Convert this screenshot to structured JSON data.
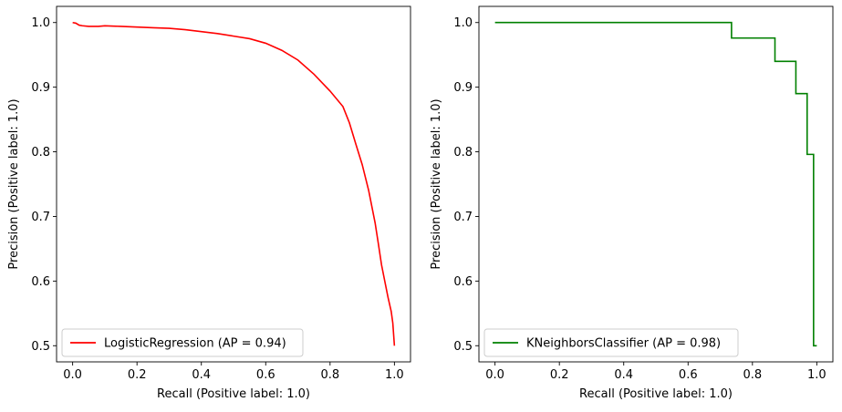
{
  "chart_data": [
    {
      "type": "line",
      "title": "",
      "xlabel": "Recall (Positive label: 1.0)",
      "ylabel": "Precision (Positive label: 1.0)",
      "xlim": [
        -0.05,
        1.05
      ],
      "ylim": [
        0.475,
        1.025
      ],
      "xticks": [
        "0.0",
        "0.2",
        "0.4",
        "0.6",
        "0.8",
        "1.0"
      ],
      "yticks": [
        "0.5",
        "0.6",
        "0.7",
        "0.8",
        "0.9",
        "1.0"
      ],
      "grid": false,
      "legend_position": "lower-left",
      "series": [
        {
          "name": "LogisticRegression (AP = 0.94)",
          "color": "#ff0000",
          "step": false,
          "x": [
            0.0,
            0.01,
            0.02,
            0.03,
            0.05,
            0.08,
            0.1,
            0.15,
            0.2,
            0.25,
            0.3,
            0.35,
            0.4,
            0.45,
            0.5,
            0.55,
            0.6,
            0.65,
            0.7,
            0.75,
            0.8,
            0.84,
            0.86,
            0.88,
            0.9,
            0.92,
            0.94,
            0.95,
            0.96,
            0.97,
            0.98,
            0.99,
            0.995,
            1.0
          ],
          "y": [
            1.0,
            0.999,
            0.996,
            0.995,
            0.994,
            0.994,
            0.995,
            0.994,
            0.993,
            0.992,
            0.991,
            0.989,
            0.986,
            0.983,
            0.979,
            0.975,
            0.968,
            0.957,
            0.942,
            0.92,
            0.894,
            0.87,
            0.845,
            0.812,
            0.78,
            0.74,
            0.69,
            0.658,
            0.625,
            0.6,
            0.575,
            0.553,
            0.535,
            0.5
          ]
        }
      ]
    },
    {
      "type": "line",
      "title": "",
      "xlabel": "Recall (Positive label: 1.0)",
      "ylabel": "Precision (Positive label: 1.0)",
      "xlim": [
        -0.05,
        1.05
      ],
      "ylim": [
        0.475,
        1.025
      ],
      "xticks": [
        "0.0",
        "0.2",
        "0.4",
        "0.6",
        "0.8",
        "1.0"
      ],
      "yticks": [
        "0.5",
        "0.6",
        "0.7",
        "0.8",
        "0.9",
        "1.0"
      ],
      "grid": false,
      "legend_position": "lower-left",
      "series": [
        {
          "name": "KNeighborsClassifier (AP = 0.98)",
          "color": "#008000",
          "step": true,
          "x": [
            0.0,
            0.735,
            0.735,
            0.87,
            0.87,
            0.935,
            0.935,
            0.97,
            0.97,
            0.99,
            0.99,
            1.0,
            1.0
          ],
          "y": [
            1.0,
            1.0,
            0.976,
            0.976,
            0.94,
            0.94,
            0.89,
            0.89,
            0.796,
            0.796,
            0.5,
            0.5,
            0.5
          ]
        }
      ]
    }
  ]
}
